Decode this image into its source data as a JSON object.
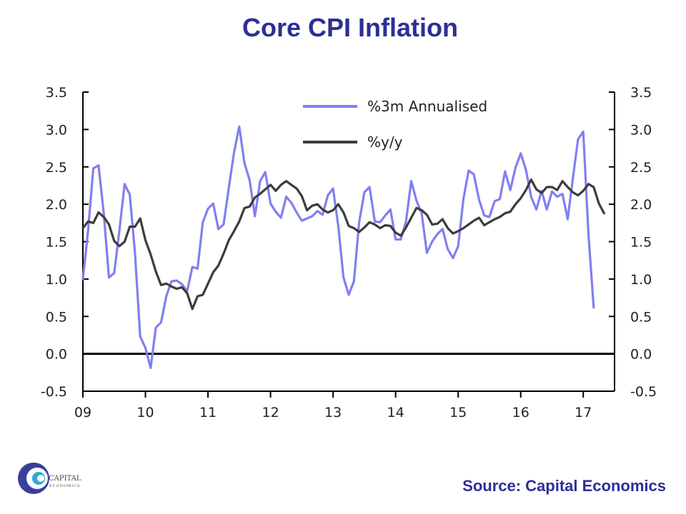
{
  "title": "Core CPI Inflation",
  "source": "Source: Capital Economics",
  "logo": {
    "line1": "CAPITAL",
    "line2": "ECONOMICS"
  },
  "colors": {
    "title": "#2b2f96",
    "annualised": "#8080f0",
    "yoy": "#3c3c3c",
    "axis": "#000000"
  },
  "chart_data": {
    "type": "line",
    "title": "Core CPI Inflation",
    "xlabel": "",
    "ylabel": "",
    "xlim": [
      2009.0,
      2017.5
    ],
    "ylim": [
      -0.5,
      3.5
    ],
    "x_ticks": [
      {
        "value": 2009,
        "label": "09"
      },
      {
        "value": 2010,
        "label": "10"
      },
      {
        "value": 2011,
        "label": "11"
      },
      {
        "value": 2012,
        "label": "12"
      },
      {
        "value": 2013,
        "label": "13"
      },
      {
        "value": 2014,
        "label": "14"
      },
      {
        "value": 2015,
        "label": "15"
      },
      {
        "value": 2016,
        "label": "16"
      },
      {
        "value": 2017,
        "label": "17"
      }
    ],
    "y_ticks": [
      "-0.5",
      "0.0",
      "0.5",
      "1.0",
      "1.5",
      "2.0",
      "2.5",
      "3.0",
      "3.5"
    ],
    "dual_axis": true,
    "grid": false,
    "legend": {
      "position": "top-center"
    },
    "x_start": "2009-01",
    "x_step": "1 month",
    "series": [
      {
        "name": "%3m Annualised",
        "color": "#8080f0",
        "values": [
          1.0,
          1.65,
          2.48,
          2.52,
          1.88,
          1.02,
          1.08,
          1.65,
          2.27,
          2.13,
          1.35,
          0.23,
          0.08,
          -0.19,
          0.35,
          0.42,
          0.77,
          0.97,
          0.98,
          0.93,
          0.84,
          1.16,
          1.14,
          1.76,
          1.94,
          2.01,
          1.67,
          1.73,
          2.22,
          2.69,
          3.04,
          2.55,
          2.32,
          1.84,
          2.31,
          2.43,
          2.01,
          1.9,
          1.82,
          2.1,
          2.02,
          1.89,
          1.78,
          1.81,
          1.84,
          1.91,
          1.86,
          2.12,
          2.21,
          1.71,
          1.02,
          0.79,
          0.97,
          1.76,
          2.16,
          2.23,
          1.77,
          1.76,
          1.85,
          1.93,
          1.53,
          1.53,
          1.77,
          2.31,
          2.05,
          1.88,
          1.35,
          1.5,
          1.6,
          1.67,
          1.4,
          1.28,
          1.44,
          2.07,
          2.45,
          2.4,
          2.06,
          1.85,
          1.83,
          2.04,
          2.07,
          2.44,
          2.19,
          2.49,
          2.68,
          2.46,
          2.1,
          1.93,
          2.18,
          1.93,
          2.17,
          2.1,
          2.14,
          1.8,
          2.34,
          2.87,
          2.97,
          1.6,
          0.62
        ]
      },
      {
        "name": "%y/y",
        "color": "#3c3c3c",
        "values": [
          1.68,
          1.77,
          1.75,
          1.89,
          1.83,
          1.73,
          1.51,
          1.44,
          1.5,
          1.7,
          1.7,
          1.81,
          1.52,
          1.33,
          1.1,
          0.92,
          0.94,
          0.9,
          0.87,
          0.89,
          0.81,
          0.6,
          0.77,
          0.79,
          0.94,
          1.09,
          1.18,
          1.34,
          1.52,
          1.64,
          1.77,
          1.95,
          1.97,
          2.09,
          2.14,
          2.2,
          2.26,
          2.18,
          2.26,
          2.31,
          2.26,
          2.21,
          2.11,
          1.92,
          1.98,
          2.0,
          1.93,
          1.89,
          1.92,
          2.0,
          1.89,
          1.71,
          1.68,
          1.63,
          1.69,
          1.76,
          1.73,
          1.68,
          1.72,
          1.71,
          1.62,
          1.58,
          1.69,
          1.82,
          1.95,
          1.92,
          1.86,
          1.73,
          1.74,
          1.8,
          1.68,
          1.61,
          1.64,
          1.68,
          1.73,
          1.78,
          1.82,
          1.72,
          1.76,
          1.8,
          1.83,
          1.88,
          1.9,
          2.0,
          2.08,
          2.19,
          2.33,
          2.2,
          2.15,
          2.23,
          2.23,
          2.19,
          2.31,
          2.23,
          2.16,
          2.12,
          2.18,
          2.27,
          2.23,
          2.01,
          1.88
        ]
      }
    ]
  }
}
